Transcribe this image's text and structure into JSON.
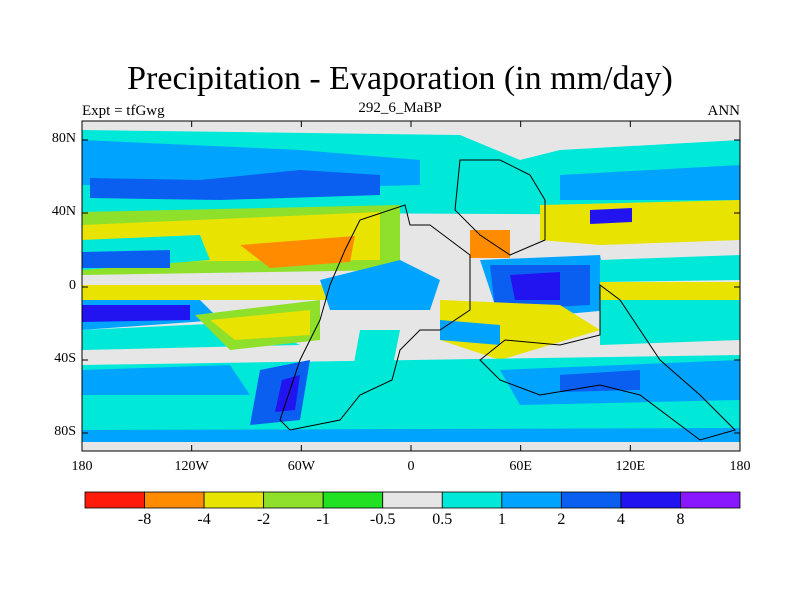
{
  "title": "Precipitation - Evaporation (in mm/day)",
  "left_label": "Expt = tfGwg",
  "center_label": "292_6_MaBP",
  "right_label": "ANN",
  "map": {
    "y_ticks": [
      "80N",
      "40N",
      "0",
      "40S",
      "80S"
    ],
    "x_ticks": [
      "180",
      "120W",
      "60W",
      "0",
      "60E",
      "120E",
      "180"
    ],
    "background_color": "#e6e6e6"
  },
  "colorbar": {
    "colors": [
      "#ff1a0a",
      "#ff8c00",
      "#e8e300",
      "#8ee02a",
      "#22e022",
      "#e6e6e6",
      "#00e8d8",
      "#00a4ff",
      "#0a5ff0",
      "#2214f0",
      "#8a18ff"
    ],
    "labels": [
      "-8",
      "-4",
      "-2",
      "-1",
      "-0.5",
      "0.5",
      "1",
      "2",
      "4",
      "8"
    ]
  }
}
